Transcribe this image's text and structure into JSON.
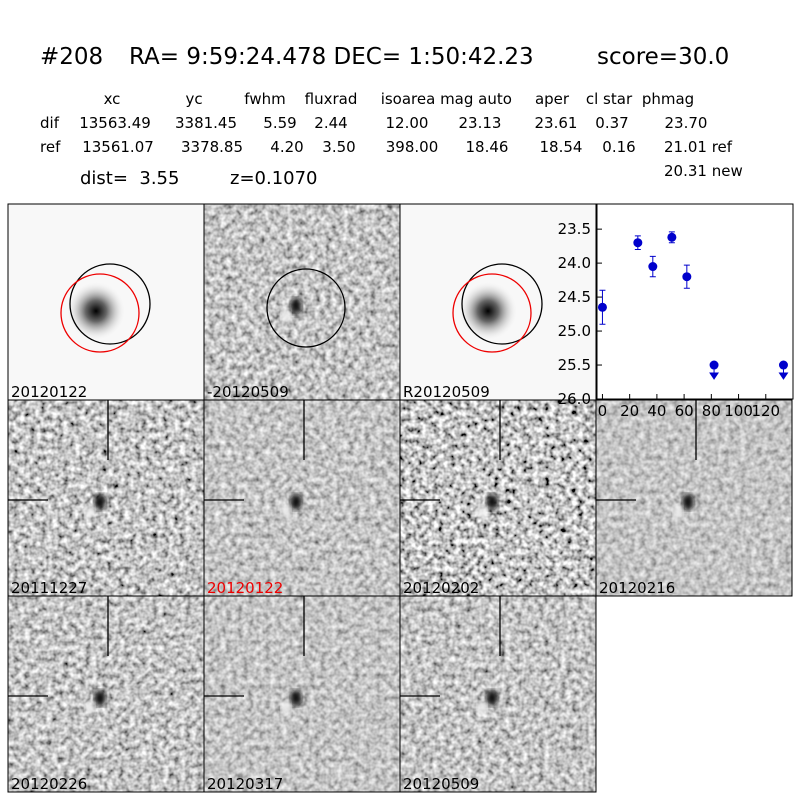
{
  "header": {
    "id": "#208",
    "coords": "RA= 9:59:24.478 DEC= 1:50:42.23",
    "score": "score=30.0"
  },
  "table": {
    "columns": [
      "xc",
      "yc",
      "fwhm",
      "fluxrad",
      "isoarea",
      "mag auto",
      "aper",
      "cl star",
      "phmag"
    ],
    "rows": [
      {
        "label": "dif",
        "cells": [
          "13563.49",
          "3381.45",
          "5.59",
          "2.44",
          "12.00",
          "23.13",
          "23.61",
          "0.37",
          "23.70"
        ]
      },
      {
        "label": "ref",
        "cells": [
          "13561.07",
          "3378.85",
          "4.20",
          "3.50",
          "398.00",
          "18.46",
          "18.54",
          "0.16",
          "21.01 ref"
        ]
      }
    ],
    "note": "20.31 new"
  },
  "dist": "dist=  3.55",
  "z": "z=0.1070",
  "cutouts": [
    "20120122",
    "-20120509",
    "R20120509",
    "20111227",
    "20120122",
    "20120202",
    "20120216",
    "20120226",
    "20120317",
    "20120509"
  ],
  "light_curve": {
    "type": "scatter",
    "color": "#0000cc",
    "detections": {
      "x": [
        0,
        26,
        37,
        51,
        62
      ],
      "values": [
        24.65,
        23.7,
        24.05,
        23.62,
        24.2
      ],
      "errors": [
        0.25,
        0.1,
        0.15,
        0.08,
        0.17
      ]
    },
    "upper_limits": {
      "x": [
        82,
        133
      ],
      "values": [
        25.5,
        25.5
      ]
    },
    "xlim": [
      -4,
      140
    ],
    "xticks": [
      0,
      20,
      40,
      60,
      80,
      100,
      120
    ],
    "ylim": [
      23.13,
      26.0
    ],
    "y_inverted": true,
    "yticks": [
      23.5,
      {
        "value": 24,
        "label": "24.0"
      },
      24.5,
      {
        "value": 25,
        "label": "25.0"
      },
      25.5,
      {
        "value": 26,
        "label": "26.0"
      }
    ]
  }
}
